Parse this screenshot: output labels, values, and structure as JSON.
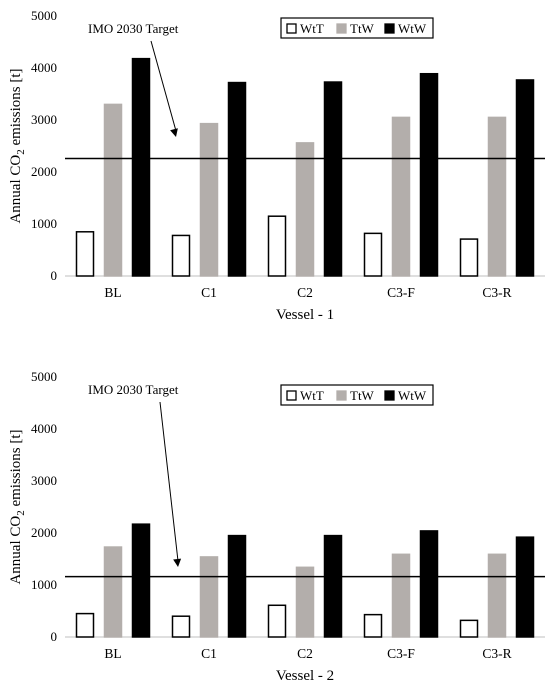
{
  "chart_data": [
    {
      "type": "bar",
      "xlabel": "Vessel - 1",
      "ylabel_prefix": "Annual CO",
      "ylabel_sub": "2",
      "ylabel_suffix": "emissions [t]",
      "ylim": [
        0,
        5000
      ],
      "yticks": [
        0,
        1000,
        2000,
        3000,
        4000,
        5000
      ],
      "categories": [
        "BL",
        "C1",
        "C2",
        "C3-F",
        "C3-R"
      ],
      "series": [
        {
          "name": "WtT",
          "values": [
            850,
            780,
            1150,
            820,
            710
          ],
          "color": "#ffffff",
          "stroke": "#000000"
        },
        {
          "name": "TtW",
          "values": [
            3300,
            2930,
            2560,
            3050,
            3050
          ],
          "color": "#b3aeab",
          "stroke": "#b3aeab"
        },
        {
          "name": "WtW",
          "values": [
            4180,
            3720,
            3730,
            3890,
            3770
          ],
          "color": "#000000",
          "stroke": "#000000"
        }
      ],
      "reference_line": {
        "label": "IMO 2030 Target",
        "value": 2260
      },
      "legend_position": "top-right",
      "grid": false
    },
    {
      "type": "bar",
      "xlabel": "Vessel - 2",
      "ylabel_prefix": "Annual CO",
      "ylabel_sub": "2",
      "ylabel_suffix": "emissions [t]",
      "ylim": [
        0,
        5000
      ],
      "yticks": [
        0,
        1000,
        2000,
        3000,
        4000,
        5000
      ],
      "categories": [
        "BL",
        "C1",
        "C2",
        "C3-F",
        "C3-R"
      ],
      "series": [
        {
          "name": "WtT",
          "values": [
            450,
            400,
            610,
            430,
            320
          ],
          "color": "#ffffff",
          "stroke": "#000000"
        },
        {
          "name": "TtW",
          "values": [
            1730,
            1540,
            1340,
            1590,
            1590
          ],
          "color": "#b3aeab",
          "stroke": "#b3aeab"
        },
        {
          "name": "WtW",
          "values": [
            2170,
            1950,
            1950,
            2040,
            1920
          ],
          "color": "#000000",
          "stroke": "#000000"
        }
      ],
      "reference_line": {
        "label": "IMO 2030 Target",
        "value": 1160
      },
      "legend_position": "top-right",
      "grid": false
    }
  ]
}
